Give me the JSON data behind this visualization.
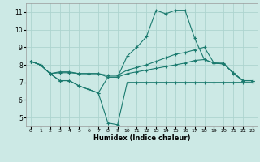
{
  "xlabel": "Humidex (Indice chaleur)",
  "xlim": [
    -0.5,
    23.5
  ],
  "ylim": [
    4.5,
    11.5
  ],
  "yticks": [
    5,
    6,
    7,
    8,
    9,
    10,
    11
  ],
  "xticks": [
    0,
    1,
    2,
    3,
    4,
    5,
    6,
    7,
    8,
    9,
    10,
    11,
    12,
    13,
    14,
    15,
    16,
    17,
    18,
    19,
    20,
    21,
    22,
    23
  ],
  "background_color": "#cce9e5",
  "grid_color": "#add4cf",
  "line_color": "#1a7a6e",
  "line1_x": [
    0,
    1,
    2,
    3,
    4,
    5,
    6,
    7,
    8,
    9,
    10,
    11,
    12,
    13,
    14,
    15,
    16,
    17,
    18,
    19,
    20,
    21,
    22,
    23
  ],
  "line1_y": [
    8.2,
    8.0,
    7.5,
    7.1,
    7.1,
    6.8,
    6.6,
    6.4,
    4.7,
    4.6,
    7.0,
    7.0,
    7.0,
    7.0,
    7.0,
    7.0,
    7.0,
    7.0,
    7.0,
    7.0,
    7.0,
    7.0,
    7.0,
    7.0
  ],
  "line2_x": [
    0,
    1,
    2,
    3,
    4,
    5,
    6,
    7,
    8,
    9,
    10,
    11,
    12,
    13,
    14,
    15,
    16,
    17,
    18,
    19,
    20,
    21,
    22,
    23
  ],
  "line2_y": [
    8.2,
    8.0,
    7.5,
    7.6,
    7.6,
    7.5,
    7.5,
    7.5,
    7.3,
    7.3,
    7.5,
    7.6,
    7.7,
    7.8,
    7.9,
    8.0,
    8.1,
    8.25,
    8.3,
    8.1,
    8.05,
    7.55,
    7.1,
    7.1
  ],
  "line3_x": [
    0,
    1,
    2,
    3,
    4,
    5,
    6,
    7,
    8,
    9,
    10,
    11,
    12,
    13,
    14,
    15,
    16,
    17,
    18,
    19,
    20,
    21,
    22,
    23
  ],
  "line3_y": [
    8.2,
    8.0,
    7.5,
    7.55,
    7.55,
    7.5,
    7.5,
    7.5,
    7.4,
    7.4,
    7.7,
    7.85,
    8.0,
    8.2,
    8.4,
    8.6,
    8.7,
    8.85,
    9.0,
    8.1,
    8.05,
    7.55,
    7.1,
    7.1
  ],
  "line4_x": [
    0,
    1,
    2,
    3,
    4,
    5,
    6,
    7,
    8,
    9,
    10,
    11,
    12,
    13,
    14,
    15,
    16,
    17,
    18,
    19,
    20,
    21,
    22,
    23
  ],
  "line4_y": [
    8.2,
    8.0,
    7.5,
    7.1,
    7.1,
    6.8,
    6.6,
    6.4,
    7.3,
    7.3,
    8.5,
    9.0,
    9.6,
    11.1,
    10.9,
    11.1,
    11.1,
    9.5,
    8.3,
    8.1,
    8.1,
    7.5,
    7.1,
    7.1
  ]
}
